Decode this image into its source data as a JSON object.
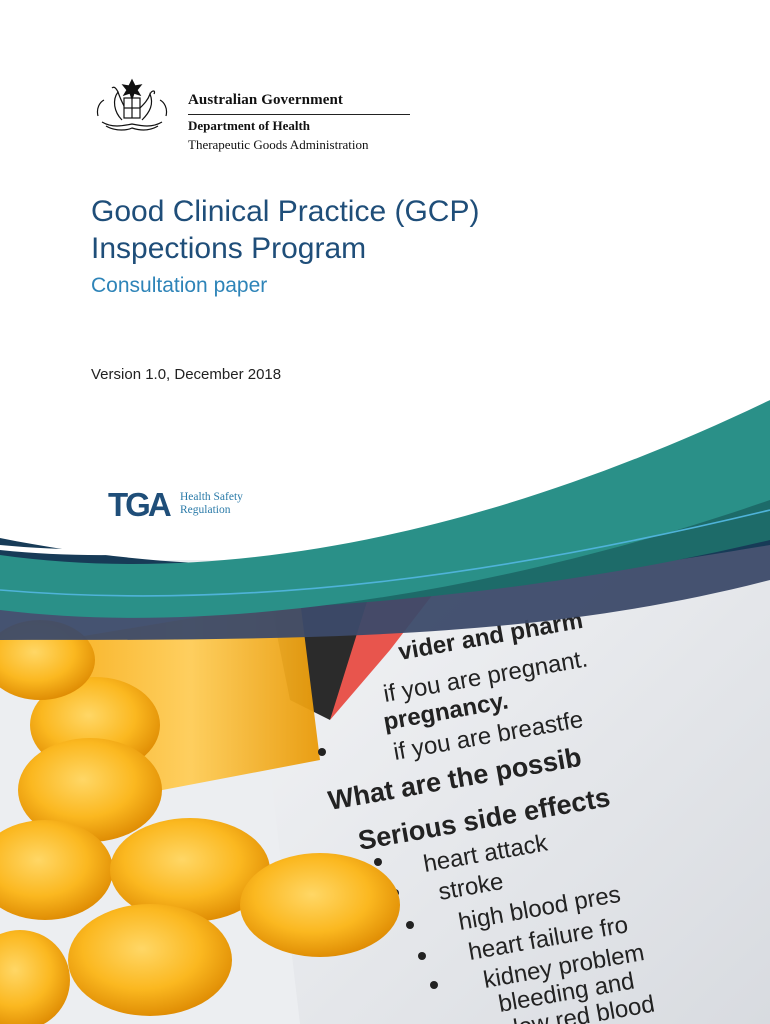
{
  "header": {
    "government": "Australian Government",
    "department": "Department of Health",
    "agency": "Therapeutic Goods Administration"
  },
  "document": {
    "title_line1": "Good Clinical Practice (GCP)",
    "title_line2": "Inspections Program",
    "subtitle": "Consultation paper",
    "version": "Version 1.0, December 2018"
  },
  "logo": {
    "acronym": "TGA",
    "tagline_line1": "Health Safety",
    "tagline_line2": "Regulation"
  },
  "photo_leaflet": {
    "line1": "vider and pharm",
    "line2": "if you are pregnant.",
    "line3": "pregnancy.",
    "line4": "if you are breastfe",
    "line5": "What are the possib",
    "heading": "Serious side effects",
    "items": [
      "heart attack",
      "stroke",
      "high blood pres",
      "heart failure fro",
      "kidney problem",
      "bleeding and",
      "low red blood"
    ]
  },
  "colors": {
    "title": "#1f4e79",
    "subtitle": "#2e84b8",
    "wave_teal": "#2a9088",
    "wave_dark_teal": "#1d6b69",
    "wave_navy": "#173b57",
    "wave_slate": "#3c4a69"
  }
}
